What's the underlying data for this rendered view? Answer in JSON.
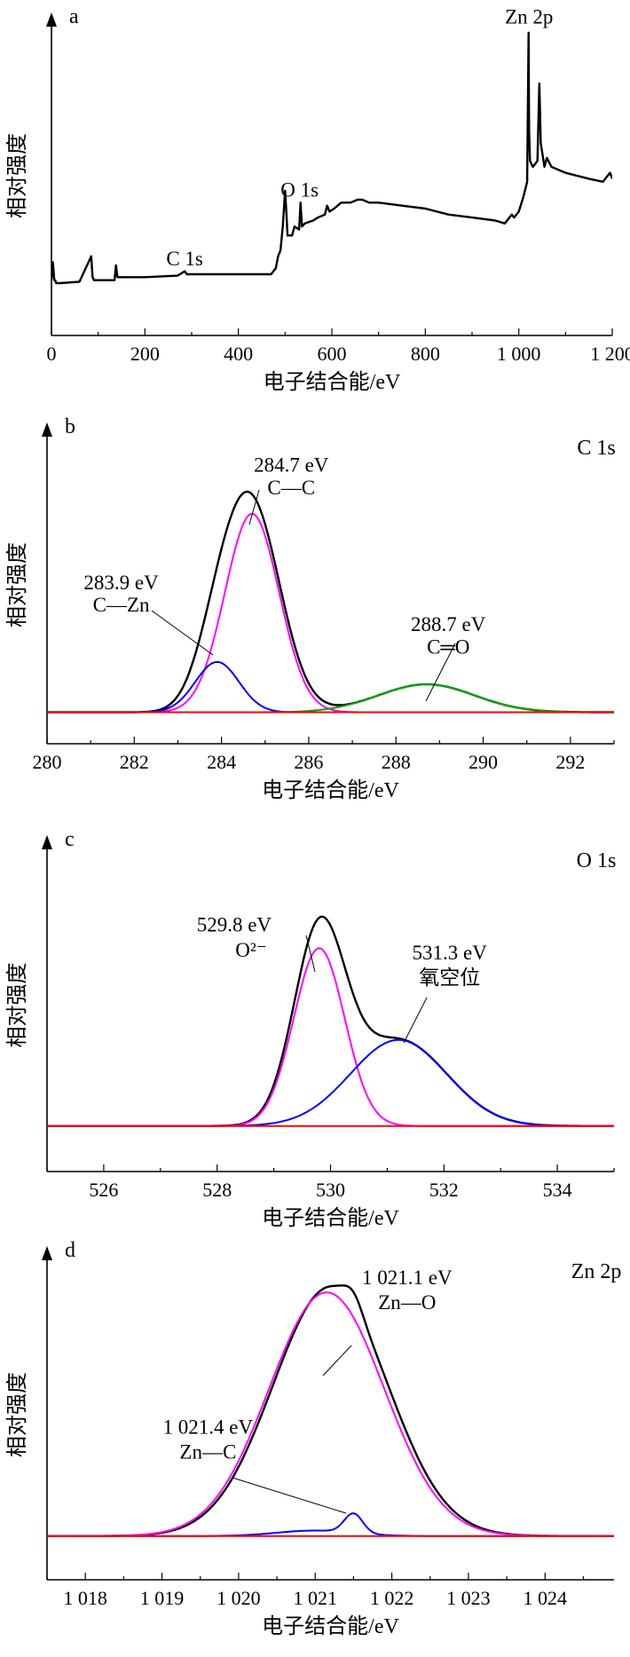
{
  "chart_data": [
    {
      "type": "line",
      "panel": "a",
      "xlabel": "电子结合能/eV",
      "ylabel": "相对强度",
      "xlim": [
        0,
        1200
      ],
      "xticks": [
        0,
        200,
        400,
        600,
        800,
        1000,
        1200
      ],
      "xtick_labels": [
        "0",
        "200",
        "400",
        "600",
        "800",
        "1 000",
        "1 200"
      ],
      "ylim": [
        0,
        1
      ],
      "annotations": [
        {
          "text": "C 1s",
          "x": 285,
          "y": 0.17
        },
        {
          "text": "O 1s",
          "x": 531,
          "y": 0.4
        },
        {
          "text": "Zn 2p",
          "x": 1022,
          "y": 0.98
        }
      ],
      "series": [
        {
          "color": "#000000",
          "x": [
            0,
            3,
            6,
            8,
            10,
            20,
            60,
            85,
            88,
            91,
            95,
            110,
            135,
            138,
            141,
            145,
            200,
            270,
            285,
            290,
            300,
            400,
            470,
            480,
            485,
            490,
            495,
            500,
            503,
            505,
            515,
            520,
            530,
            533,
            536,
            542,
            560,
            570,
            585,
            590,
            595,
            605,
            620,
            640,
            655,
            665,
            680,
            700,
            750,
            800,
            850,
            900,
            950,
            970,
            980,
            985,
            990,
            1000,
            1010,
            1018,
            1021,
            1022,
            1024,
            1030,
            1040,
            1044,
            1045,
            1047,
            1055,
            1060,
            1070,
            1100,
            1150,
            1180,
            1190,
            1195,
            1200
          ],
          "y": [
            0.12,
            0.18,
            0.12,
            0.12,
            0.11,
            0.11,
            0.115,
            0.2,
            0.13,
            0.12,
            0.12,
            0.12,
            0.12,
            0.17,
            0.13,
            0.13,
            0.13,
            0.135,
            0.15,
            0.14,
            0.14,
            0.14,
            0.14,
            0.16,
            0.2,
            0.22,
            0.3,
            0.42,
            0.34,
            0.27,
            0.27,
            0.3,
            0.29,
            0.38,
            0.3,
            0.31,
            0.32,
            0.33,
            0.34,
            0.37,
            0.35,
            0.36,
            0.38,
            0.38,
            0.39,
            0.39,
            0.38,
            0.38,
            0.37,
            0.36,
            0.34,
            0.33,
            0.32,
            0.31,
            0.33,
            0.34,
            0.33,
            0.35,
            0.4,
            0.45,
            0.95,
            0.62,
            0.52,
            0.5,
            0.52,
            0.78,
            0.71,
            0.58,
            0.5,
            0.53,
            0.5,
            0.48,
            0.46,
            0.45,
            0.47,
            0.48,
            0.46
          ]
        }
      ]
    },
    {
      "type": "line",
      "panel": "b",
      "title": "C 1s",
      "xlabel": "电子结合能/eV",
      "ylabel": "相对强度",
      "xlim": [
        280,
        293
      ],
      "xticks": [
        280,
        282,
        284,
        286,
        288,
        290,
        292
      ],
      "xtick_labels": [
        "280",
        "282",
        "284",
        "286",
        "288",
        "290",
        "292"
      ],
      "ylim": [
        0,
        1
      ],
      "annotations": [
        {
          "text": "284.7 eV",
          "x": 285.6,
          "y": 0.89
        },
        {
          "text": "C—C",
          "x": 285.6,
          "y": 0.81
        },
        {
          "text": "283.9 eV",
          "x": 281.7,
          "y": 0.47
        },
        {
          "text": "C—Zn",
          "x": 281.7,
          "y": 0.39
        },
        {
          "text": "288.7 eV",
          "x": 289.2,
          "y": 0.32
        },
        {
          "text": "C═O",
          "x": 289.2,
          "y": 0.24
        }
      ],
      "series": [
        {
          "color": "#000000",
          "peaks": [
            {
              "center": 284.7,
              "amplitude": 0.73,
              "sigma": 0.65
            },
            {
              "center": 283.9,
              "amplitude": 0.18,
              "sigma": 0.5
            },
            {
              "center": 288.7,
              "amplitude": 0.1,
              "sigma": 1.1
            }
          ],
          "baseline": 0.03
        },
        {
          "color": "#ff00ff",
          "peaks": [
            {
              "center": 284.7,
              "amplitude": 0.71,
              "sigma": 0.62
            }
          ],
          "baseline": 0.03
        },
        {
          "color": "#0000ff",
          "peaks": [
            {
              "center": 283.9,
              "amplitude": 0.18,
              "sigma": 0.5
            }
          ],
          "baseline": 0.03
        },
        {
          "color": "#00aa00",
          "peaks": [
            {
              "center": 288.7,
              "amplitude": 0.1,
              "sigma": 1.1
            }
          ],
          "baseline": 0.03
        },
        {
          "color": "#ff0000",
          "peaks": [],
          "baseline": 0.03
        }
      ]
    },
    {
      "type": "line",
      "panel": "c",
      "title": "O 1s",
      "xlabel": "电子结合能/eV",
      "ylabel": "相对强度",
      "xlim": [
        525,
        535
      ],
      "xticks": [
        526,
        528,
        530,
        532,
        534
      ],
      "xtick_labels": [
        "526",
        "528",
        "530",
        "532",
        "534"
      ],
      "ylim": [
        0,
        1
      ],
      "annotations": [
        {
          "text": "529.8 eV",
          "x": 528.3,
          "y": 0.72
        },
        {
          "text": "O²⁻",
          "x": 528.6,
          "y": 0.63
        },
        {
          "text": "531.3 eV",
          "x": 532.1,
          "y": 0.62
        },
        {
          "text": "氧空位",
          "x": 532.1,
          "y": 0.53
        }
      ],
      "series": [
        {
          "color": "#000000",
          "peaks": [
            {
              "center": 529.8,
              "amplitude": 0.67,
              "sigma": 0.45
            },
            {
              "center": 531.2,
              "amplitude": 0.31,
              "sigma": 0.85
            }
          ],
          "baseline": 0.02
        },
        {
          "color": "#ff00ff",
          "peaks": [
            {
              "center": 529.8,
              "amplitude": 0.64,
              "sigma": 0.45
            }
          ],
          "baseline": 0.02
        },
        {
          "color": "#0000ff",
          "peaks": [
            {
              "center": 531.2,
              "amplitude": 0.31,
              "sigma": 0.85
            }
          ],
          "baseline": 0.02
        },
        {
          "color": "#ff0000",
          "peaks": [],
          "baseline": 0.02
        }
      ]
    },
    {
      "type": "line",
      "panel": "d",
      "title": "Zn 2p",
      "xlabel": "电子结合能/eV",
      "ylabel": "相对强度",
      "xlim": [
        1017.5,
        1024.9
      ],
      "xticks": [
        1018,
        1019,
        1020,
        1021,
        1022,
        1023,
        1024
      ],
      "xtick_labels": [
        "1 018",
        "1 019",
        "1 020",
        "1 021",
        "1 022",
        "1 023",
        "1 024"
      ],
      "ylim": [
        0,
        1
      ],
      "annotations": [
        {
          "text": "1 021.1 eV",
          "x": 1022.2,
          "y": 0.93
        },
        {
          "text": "Zn—O",
          "x": 1022.2,
          "y": 0.84
        },
        {
          "text": "1 021.4 eV",
          "x": 1019.6,
          "y": 0.39
        },
        {
          "text": "Zn—C",
          "x": 1019.6,
          "y": 0.3
        }
      ],
      "series": [
        {
          "color": "#000000",
          "peaks": [
            {
              "center": 1021.2,
              "amplitude": 0.9,
              "sigma": 0.75
            },
            {
              "center": 1021.5,
              "amplitude": 0.05,
              "sigma": 0.12
            }
          ],
          "baseline": 0.02
        },
        {
          "color": "#ff00ff",
          "peaks": [
            {
              "center": 1021.15,
              "amplitude": 0.88,
              "sigma": 0.75
            }
          ],
          "baseline": 0.02
        },
        {
          "color": "#0000ff",
          "peaks": [
            {
              "center": 1021.5,
              "amplitude": 0.07,
              "sigma": 0.12
            }
          ],
          "baseline": 0.02,
          "tail": 0.02
        },
        {
          "color": "#ff0000",
          "peaks": [],
          "baseline": 0.02
        }
      ]
    }
  ]
}
